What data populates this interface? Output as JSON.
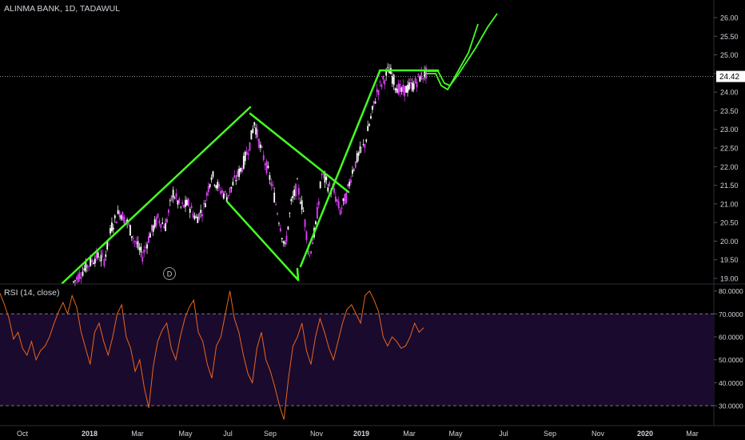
{
  "chart_data": {
    "type": "candlestick",
    "title": "ALINMA BANK, 1D, TADAWUL",
    "price_axis": {
      "ticks": [
        "26.00",
        "25.50",
        "25.00",
        "24.50",
        "24.00",
        "23.50",
        "23.00",
        "22.50",
        "22.00",
        "21.50",
        "21.00",
        "20.50",
        "20.00",
        "19.50",
        "19.00"
      ],
      "range": [
        19.0,
        26.0
      ],
      "current_price_label": "24.42",
      "current_price": 24.42
    },
    "time_axis": {
      "ticks": [
        "Oct",
        "2018",
        "Mar",
        "May",
        "Jul",
        "Sep",
        "Nov",
        "2019",
        "Mar",
        "May",
        "Jul",
        "Sep",
        "Nov",
        "2020",
        "Mar"
      ],
      "bold_ticks": [
        "2018",
        "2019",
        "2020"
      ]
    },
    "price_series": [
      {
        "d": 0,
        "p": 18.9
      },
      {
        "d": 8,
        "p": 19.3
      },
      {
        "d": 15,
        "p": 19.6
      },
      {
        "d": 20,
        "p": 19.5
      },
      {
        "d": 25,
        "p": 20.4
      },
      {
        "d": 30,
        "p": 20.8
      },
      {
        "d": 35,
        "p": 20.5
      },
      {
        "d": 40,
        "p": 20.0
      },
      {
        "d": 45,
        "p": 19.6
      },
      {
        "d": 50,
        "p": 20.2
      },
      {
        "d": 55,
        "p": 20.6
      },
      {
        "d": 60,
        "p": 20.4
      },
      {
        "d": 65,
        "p": 21.3
      },
      {
        "d": 70,
        "p": 20.9
      },
      {
        "d": 75,
        "p": 21.0
      },
      {
        "d": 80,
        "p": 20.6
      },
      {
        "d": 85,
        "p": 20.9
      },
      {
        "d": 90,
        "p": 21.8
      },
      {
        "d": 95,
        "p": 21.4
      },
      {
        "d": 100,
        "p": 21.2
      },
      {
        "d": 105,
        "p": 21.6
      },
      {
        "d": 110,
        "p": 22.0
      },
      {
        "d": 115,
        "p": 22.6
      },
      {
        "d": 118,
        "p": 23.2
      },
      {
        "d": 122,
        "p": 22.5
      },
      {
        "d": 126,
        "p": 22.0
      },
      {
        "d": 130,
        "p": 21.4
      },
      {
        "d": 134,
        "p": 20.6
      },
      {
        "d": 138,
        "p": 19.8
      },
      {
        "d": 142,
        "p": 21.0
      },
      {
        "d": 146,
        "p": 21.5
      },
      {
        "d": 150,
        "p": 20.8
      },
      {
        "d": 154,
        "p": 19.6
      },
      {
        "d": 158,
        "p": 20.4
      },
      {
        "d": 162,
        "p": 21.8
      },
      {
        "d": 166,
        "p": 21.5
      },
      {
        "d": 170,
        "p": 21.3
      },
      {
        "d": 174,
        "p": 20.8
      },
      {
        "d": 178,
        "p": 21.2
      },
      {
        "d": 182,
        "p": 21.9
      },
      {
        "d": 186,
        "p": 22.3
      },
      {
        "d": 190,
        "p": 22.6
      },
      {
        "d": 194,
        "p": 23.3
      },
      {
        "d": 198,
        "p": 24.0
      },
      {
        "d": 202,
        "p": 24.3
      },
      {
        "d": 206,
        "p": 24.6
      },
      {
        "d": 210,
        "p": 24.2
      },
      {
        "d": 214,
        "p": 24.0
      },
      {
        "d": 218,
        "p": 24.1
      },
      {
        "d": 222,
        "p": 24.2
      },
      {
        "d": 226,
        "p": 24.4
      },
      {
        "d": 230,
        "p": 24.5
      }
    ],
    "annotations": {
      "trendlines": "green hand-drawn channel, wedge and projection",
      "marker_label": "D"
    },
    "rsi": {
      "title": "RSI (14, close)",
      "ticks": [
        "80.0000",
        "70.0000",
        "60.0000",
        "50.0000",
        "40.0000",
        "30.0000"
      ],
      "range": [
        22,
        82
      ],
      "upper_band": 70,
      "lower_band": 30,
      "values": [
        79,
        74,
        68,
        59,
        62,
        55,
        52,
        58,
        50,
        54,
        56,
        60,
        66,
        71,
        75,
        70,
        78,
        73,
        62,
        55,
        48,
        62,
        66,
        58,
        52,
        60,
        70,
        74,
        60,
        55,
        45,
        50,
        38,
        29,
        47,
        58,
        63,
        66,
        55,
        50,
        60,
        68,
        73,
        76,
        62,
        58,
        48,
        42,
        56,
        60,
        70,
        80,
        68,
        62,
        52,
        44,
        40,
        55,
        62,
        50,
        45,
        38,
        30,
        24,
        42,
        56,
        60,
        66,
        54,
        48,
        60,
        68,
        62,
        55,
        50,
        58,
        66,
        72,
        74,
        70,
        66,
        78,
        80,
        76,
        71,
        60,
        56,
        60,
        58,
        55,
        56,
        60,
        66,
        62,
        64
      ]
    },
    "colors": {
      "background": "#000000",
      "candle_up": "#ffffff",
      "candle_down": "#e040fb",
      "trendline": "#44ff22",
      "rsi_line": "#e8661d",
      "rsi_band": "#1a0a2e",
      "axis_text": "#d1d4dc"
    }
  }
}
